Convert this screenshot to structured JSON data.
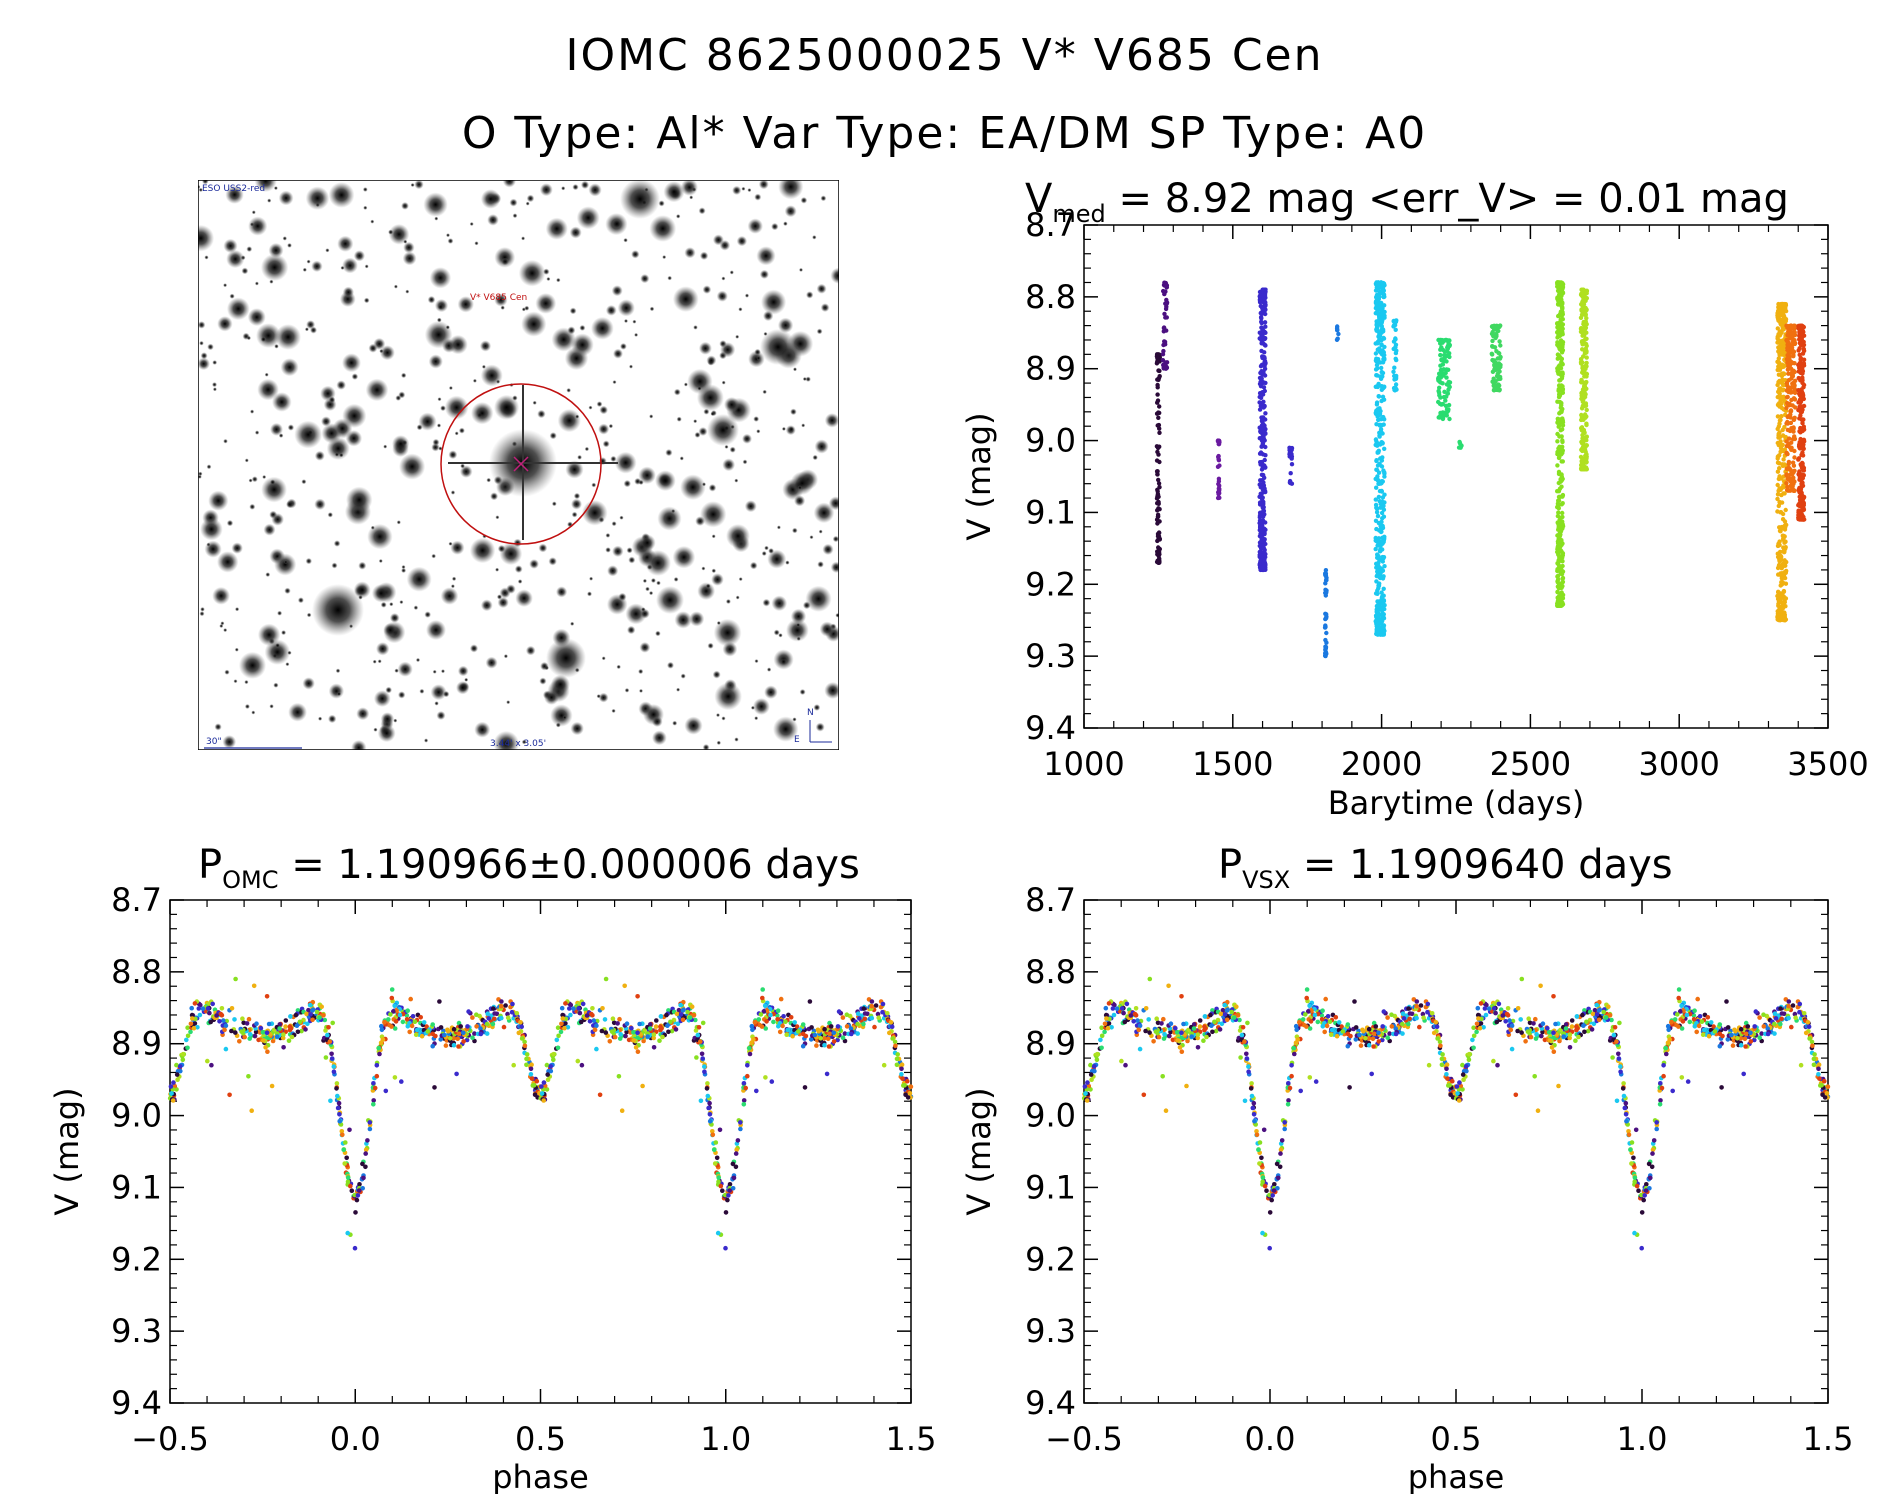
{
  "header": {
    "title": "IOMC 8625000025   V* V685 Cen",
    "subtitle": "O Type: Al*  Var Type: EA/DM  SP Type: A0"
  },
  "finder": {
    "survey_label": "ESO USS2-red",
    "target_label": "V* V685 Cen",
    "scale_label": "30\"",
    "field_label": "3.44' x 3.05'",
    "north_label": "N",
    "east_label": "E"
  },
  "panels": {
    "lightcurve": {
      "title_prefix": "V",
      "title_sub": "med",
      "title_rest": " = 8.92 mag <err_V> = 0.01 mag",
      "xlabel": "Barytime (days)",
      "ylabel": "V (mag)"
    },
    "phase_omc": {
      "title_prefix": "P",
      "title_sub": "OMC",
      "title_rest": " = 1.190966±0.000006 days",
      "xlabel": "phase",
      "ylabel": "V (mag)"
    },
    "phase_vsx": {
      "title_prefix": "P",
      "title_sub": "VSX",
      "title_rest": " = 1.1909640 days",
      "xlabel": "phase",
      "ylabel": "V (mag)"
    }
  },
  "chart_data": [
    {
      "type": "scatter",
      "title": "Vmed = 8.92 mag <err_V> = 0.01 mag",
      "xlabel": "Barytime (days)",
      "ylabel": "V (mag)",
      "xlim": [
        1000,
        3500
      ],
      "ylim": [
        9.4,
        8.7
      ],
      "xticks": [
        "1000",
        "1500",
        "2000",
        "2500",
        "3000",
        "3500"
      ],
      "yticks": [
        "8.7",
        "8.8",
        "8.9",
        "9.0",
        "9.1",
        "9.2",
        "9.3",
        "9.4"
      ],
      "series": [
        {
          "color": "#2a0a38",
          "x_range": [
            1245,
            1255
          ],
          "y_range": [
            8.88,
            9.17
          ]
        },
        {
          "color": "#4b1080",
          "x_range": [
            1265,
            1280
          ],
          "y_range": [
            8.78,
            8.9
          ]
        },
        {
          "color": "#6a1aa0",
          "x_range": [
            1450,
            1455
          ],
          "y_range": [
            9.0,
            9.08
          ]
        },
        {
          "color": "#3a2acc",
          "x_range": [
            1590,
            1610
          ],
          "y_range": [
            8.79,
            9.18
          ]
        },
        {
          "color": "#3a2acc",
          "x_range": [
            1690,
            1700
          ],
          "y_range": [
            9.01,
            9.06
          ]
        },
        {
          "color": "#1a78e0",
          "x_range": [
            1810,
            1815
          ],
          "y_range": [
            9.18,
            9.3
          ]
        },
        {
          "color": "#1a78e0",
          "x_range": [
            1850,
            1855
          ],
          "y_range": [
            8.84,
            8.86
          ]
        },
        {
          "color": "#1ac8f0",
          "x_range": [
            1980,
            2010
          ],
          "y_range": [
            8.78,
            9.27
          ]
        },
        {
          "color": "#1ac8f0",
          "x_range": [
            2040,
            2050
          ],
          "y_range": [
            8.83,
            8.93
          ]
        },
        {
          "color": "#2adc70",
          "x_range": [
            2190,
            2230
          ],
          "y_range": [
            8.86,
            8.97
          ]
        },
        {
          "color": "#2adc70",
          "x_range": [
            2260,
            2270
          ],
          "y_range": [
            9.0,
            9.01
          ]
        },
        {
          "color": "#40d860",
          "x_range": [
            2370,
            2400
          ],
          "y_range": [
            8.84,
            8.93
          ]
        },
        {
          "color": "#88e020",
          "x_range": [
            2590,
            2610
          ],
          "y_range": [
            8.78,
            9.23
          ]
        },
        {
          "color": "#b0e020",
          "x_range": [
            2670,
            2690
          ],
          "y_range": [
            8.79,
            9.04
          ]
        },
        {
          "color": "#f0b010",
          "x_range": [
            3330,
            3360
          ],
          "y_range": [
            8.81,
            9.25
          ]
        },
        {
          "color": "#f07010",
          "x_range": [
            3360,
            3390
          ],
          "y_range": [
            8.84,
            9.07
          ]
        },
        {
          "color": "#e04010",
          "x_range": [
            3400,
            3420
          ],
          "y_range": [
            8.84,
            9.11
          ]
        }
      ]
    },
    {
      "type": "scatter",
      "title": "POMC = 1.190966±0.000006 days",
      "xlabel": "phase",
      "ylabel": "V (mag)",
      "xlim": [
        -0.5,
        1.5
      ],
      "ylim": [
        9.4,
        8.7
      ],
      "xticks": [
        "−0.5",
        "0.0",
        "0.5",
        "1.0",
        "1.5"
      ],
      "yticks": [
        "8.7",
        "8.8",
        "8.9",
        "9.0",
        "9.1",
        "9.2",
        "9.3",
        "9.4"
      ],
      "model": {
        "max_mag": 8.83,
        "primary_min_mag": 9.12,
        "primary_min_phase": 0.0,
        "secondary_min_mag": 9.0,
        "secondary_min_phase": 0.5,
        "period_days": 1.190966
      }
    },
    {
      "type": "scatter",
      "title": "PVSX = 1.1909640 days",
      "xlabel": "phase",
      "ylabel": "V (mag)",
      "xlim": [
        -0.5,
        1.5
      ],
      "ylim": [
        9.4,
        8.7
      ],
      "xticks": [
        "−0.5",
        "0.0",
        "0.5",
        "1.0",
        "1.5"
      ],
      "yticks": [
        "8.7",
        "8.8",
        "8.9",
        "9.0",
        "9.1",
        "9.2",
        "9.3",
        "9.4"
      ],
      "model": {
        "max_mag": 8.83,
        "primary_min_mag": 9.12,
        "primary_min_phase": 0.0,
        "secondary_min_mag": 9.0,
        "secondary_min_phase": 0.5,
        "period_days": 1.190964
      }
    }
  ],
  "palette": [
    "#2a0a38",
    "#4b1080",
    "#3a2acc",
    "#1a78e0",
    "#1ac8f0",
    "#2adc70",
    "#88e020",
    "#b0e020",
    "#f0b010",
    "#f07010",
    "#e04010"
  ]
}
